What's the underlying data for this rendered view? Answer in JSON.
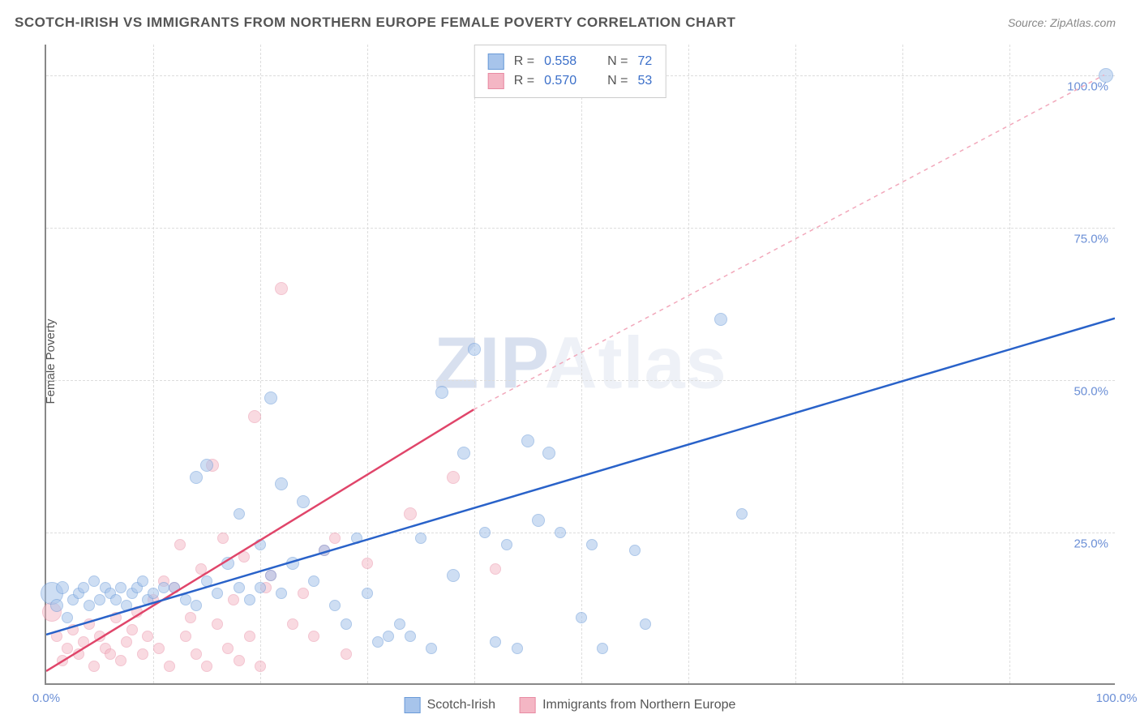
{
  "title": "SCOTCH-IRISH VS IMMIGRANTS FROM NORTHERN EUROPE FEMALE POVERTY CORRELATION CHART",
  "source": "Source: ZipAtlas.com",
  "y_axis_label": "Female Poverty",
  "watermark": {
    "prefix": "ZIP",
    "suffix": "Atlas"
  },
  "chart": {
    "type": "scatter",
    "xlim": [
      0,
      100
    ],
    "ylim": [
      0,
      105
    ],
    "x_ticks": [
      {
        "v": 0,
        "l": "0.0%"
      },
      {
        "v": 100,
        "l": "100.0%"
      }
    ],
    "y_ticks": [
      {
        "v": 25,
        "l": "25.0%"
      },
      {
        "v": 50,
        "l": "50.0%"
      },
      {
        "v": 75,
        "l": "75.0%"
      },
      {
        "v": 100,
        "l": "100.0%"
      }
    ],
    "x_grid_minor": [
      10,
      20,
      30,
      40,
      50,
      60,
      70,
      80,
      90
    ],
    "background_color": "#ffffff",
    "grid_color": "#dddddd",
    "series": [
      {
        "name": "Scotch-Irish",
        "fill": "#a7c4eb",
        "stroke": "#6b9bd8",
        "fill_opacity": 0.55,
        "line_color": "#2962c9",
        "line_width": 2.5,
        "line_dash": "none",
        "marker_radius": 7,
        "R": "0.558",
        "N": "72",
        "trend": {
          "x1": 0,
          "y1": 8,
          "x2": 100,
          "y2": 60
        },
        "points": [
          [
            0.5,
            15,
            14
          ],
          [
            1,
            13,
            8
          ],
          [
            1.5,
            16,
            8
          ],
          [
            2,
            11,
            7
          ],
          [
            2.5,
            14,
            7
          ],
          [
            3,
            15,
            7
          ],
          [
            3.5,
            16,
            7
          ],
          [
            4,
            13,
            7
          ],
          [
            4.5,
            17,
            7
          ],
          [
            5,
            14,
            7
          ],
          [
            5.5,
            16,
            7
          ],
          [
            6,
            15,
            7
          ],
          [
            6.5,
            14,
            7
          ],
          [
            7,
            16,
            7
          ],
          [
            7.5,
            13,
            7
          ],
          [
            8,
            15,
            7
          ],
          [
            8.5,
            16,
            7
          ],
          [
            9,
            17,
            7
          ],
          [
            9.5,
            14,
            7
          ],
          [
            10,
            15,
            7
          ],
          [
            11,
            16,
            7
          ],
          [
            12,
            16,
            7
          ],
          [
            13,
            14,
            7
          ],
          [
            14,
            13,
            7
          ],
          [
            15,
            17,
            7
          ],
          [
            16,
            15,
            7
          ],
          [
            17,
            20,
            8
          ],
          [
            18,
            16,
            7
          ],
          [
            19,
            14,
            7
          ],
          [
            20,
            16,
            7
          ],
          [
            21,
            18,
            7
          ],
          [
            22,
            15,
            7
          ],
          [
            14,
            34,
            8
          ],
          [
            15,
            36,
            8
          ],
          [
            18,
            28,
            7
          ],
          [
            20,
            23,
            7
          ],
          [
            21,
            47,
            8
          ],
          [
            22,
            33,
            8
          ],
          [
            23,
            20,
            8
          ],
          [
            24,
            30,
            8
          ],
          [
            25,
            17,
            7
          ],
          [
            26,
            22,
            7
          ],
          [
            27,
            13,
            7
          ],
          [
            28,
            10,
            7
          ],
          [
            29,
            24,
            7
          ],
          [
            30,
            15,
            7
          ],
          [
            31,
            7,
            7
          ],
          [
            32,
            8,
            7
          ],
          [
            33,
            10,
            7
          ],
          [
            34,
            8,
            7
          ],
          [
            35,
            24,
            7
          ],
          [
            36,
            6,
            7
          ],
          [
            37,
            48,
            8
          ],
          [
            38,
            18,
            8
          ],
          [
            39,
            38,
            8
          ],
          [
            40,
            55,
            8
          ],
          [
            41,
            25,
            7
          ],
          [
            42,
            7,
            7
          ],
          [
            43,
            23,
            7
          ],
          [
            44,
            6,
            7
          ],
          [
            45,
            40,
            8
          ],
          [
            46,
            27,
            8
          ],
          [
            47,
            38,
            8
          ],
          [
            48,
            25,
            7
          ],
          [
            50,
            11,
            7
          ],
          [
            51,
            23,
            7
          ],
          [
            52,
            6,
            7
          ],
          [
            55,
            22,
            7
          ],
          [
            56,
            10,
            7
          ],
          [
            63,
            60,
            8
          ],
          [
            65,
            28,
            7
          ],
          [
            99,
            100,
            9
          ]
        ]
      },
      {
        "name": "Immigrants from Northern Europe",
        "fill": "#f4b6c4",
        "stroke": "#e88ba3",
        "fill_opacity": 0.5,
        "line_color": "#e0456a",
        "line_width": 2.5,
        "line_dash": "5,5",
        "marker_radius": 7,
        "R": "0.570",
        "N": "53",
        "trend_solid": {
          "x1": 0,
          "y1": 2,
          "x2": 40,
          "y2": 45
        },
        "trend_dash": {
          "x1": 40,
          "y1": 45,
          "x2": 99,
          "y2": 100
        },
        "points": [
          [
            0.5,
            12,
            12
          ],
          [
            1,
            8,
            7
          ],
          [
            1.5,
            4,
            7
          ],
          [
            2,
            6,
            7
          ],
          [
            2.5,
            9,
            7
          ],
          [
            3,
            5,
            7
          ],
          [
            3.5,
            7,
            7
          ],
          [
            4,
            10,
            7
          ],
          [
            4.5,
            3,
            7
          ],
          [
            5,
            8,
            7
          ],
          [
            5.5,
            6,
            7
          ],
          [
            6,
            5,
            7
          ],
          [
            6.5,
            11,
            7
          ],
          [
            7,
            4,
            7
          ],
          [
            7.5,
            7,
            7
          ],
          [
            8,
            9,
            7
          ],
          [
            8.5,
            12,
            7
          ],
          [
            9,
            5,
            7
          ],
          [
            9.5,
            8,
            7
          ],
          [
            10,
            14,
            7
          ],
          [
            10.5,
            6,
            7
          ],
          [
            11,
            17,
            7
          ],
          [
            11.5,
            3,
            7
          ],
          [
            12,
            16,
            7
          ],
          [
            12.5,
            23,
            7
          ],
          [
            13,
            8,
            7
          ],
          [
            13.5,
            11,
            7
          ],
          [
            14,
            5,
            7
          ],
          [
            14.5,
            19,
            7
          ],
          [
            15,
            3,
            7
          ],
          [
            15.5,
            36,
            8
          ],
          [
            16,
            10,
            7
          ],
          [
            16.5,
            24,
            7
          ],
          [
            17,
            6,
            7
          ],
          [
            17.5,
            14,
            7
          ],
          [
            18,
            4,
            7
          ],
          [
            18.5,
            21,
            7
          ],
          [
            19,
            8,
            7
          ],
          [
            19.5,
            44,
            8
          ],
          [
            20,
            3,
            7
          ],
          [
            20.5,
            16,
            7
          ],
          [
            21,
            18,
            7
          ],
          [
            22,
            65,
            8
          ],
          [
            23,
            10,
            7
          ],
          [
            24,
            15,
            7
          ],
          [
            25,
            8,
            7
          ],
          [
            26,
            22,
            7
          ],
          [
            27,
            24,
            7
          ],
          [
            28,
            5,
            7
          ],
          [
            30,
            20,
            7
          ],
          [
            34,
            28,
            8
          ],
          [
            38,
            34,
            8
          ],
          [
            42,
            19,
            7
          ]
        ]
      }
    ]
  },
  "legend_top_label_R": "R =",
  "legend_top_label_N": "N ="
}
